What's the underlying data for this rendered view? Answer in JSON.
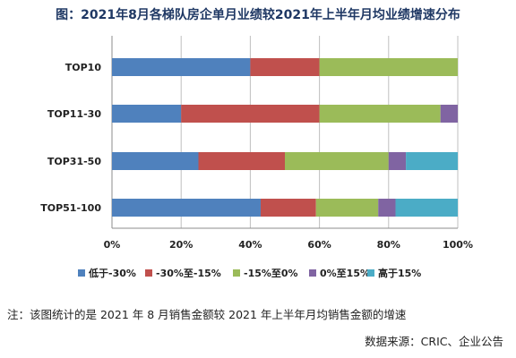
{
  "title": "图：2021年8月各梯队房企单月业绩较2021年上半年月均业绩增速分布",
  "note": "注：该图统计的是 2021 年 8 月销售金额较 2021 年上半年月均销售金额的增速",
  "source": "数据来源：CRIC、企业公告",
  "chart_data": {
    "type": "bar",
    "orientation": "horizontal",
    "stacked": true,
    "categories": [
      "TOP10",
      "TOP11-30",
      "TOP31-50",
      "TOP51-100"
    ],
    "series": [
      {
        "name": "低于-30%",
        "color": "#4f81bd",
        "values": [
          40,
          20,
          25,
          43
        ]
      },
      {
        "name": "-30%至-15%",
        "color": "#c0504d",
        "values": [
          20,
          40,
          25,
          16
        ]
      },
      {
        "name": "-15%至0%",
        "color": "#9bbb59",
        "values": [
          40,
          35,
          30,
          18
        ]
      },
      {
        "name": "0%至15%",
        "color": "#8064a2",
        "values": [
          0,
          5,
          5,
          5
        ]
      },
      {
        "name": "高于15%",
        "color": "#4bacc6",
        "values": [
          0,
          0,
          15,
          18
        ]
      }
    ],
    "xlim": [
      0,
      100
    ],
    "x_ticks": [
      "0%",
      "20%",
      "40%",
      "60%",
      "80%",
      "100%"
    ],
    "grid": true,
    "legend_position": "bottom"
  }
}
